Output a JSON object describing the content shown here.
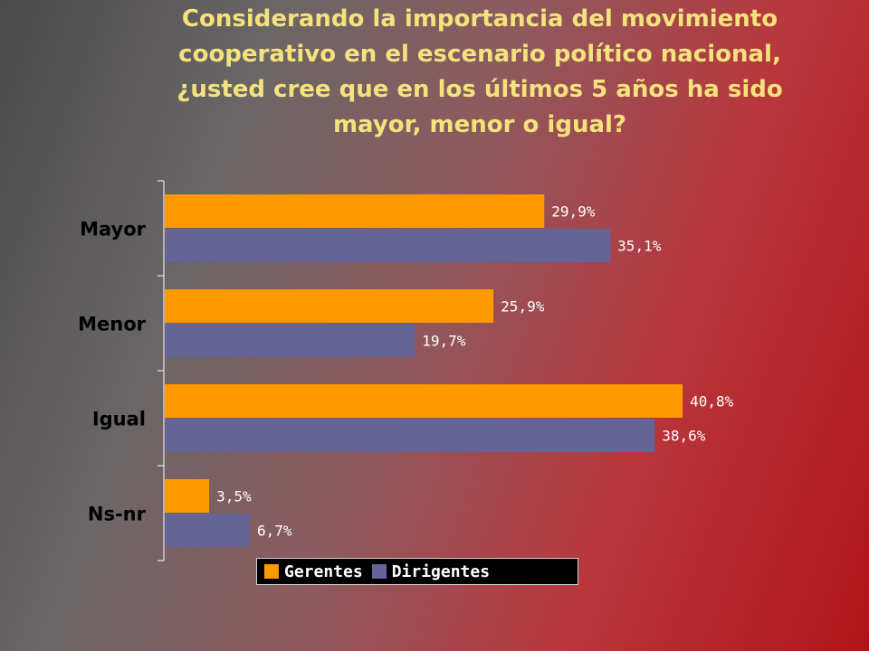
{
  "title": "Considerando la importancia del movimiento cooperativo en el escenario político nacional, ¿usted cree que en los últimos 5 años ha sido mayor, menor o igual?",
  "chart_data": {
    "type": "bar",
    "orientation": "horizontal",
    "title": "Considerando la importancia del movimiento cooperativo en el escenario político nacional, ¿usted cree que en los últimos 5 años ha sido mayor, menor o igual?",
    "categories": [
      "Mayor",
      "Menor",
      "Igual",
      "Ns-nr"
    ],
    "series": [
      {
        "name": "Gerentes",
        "color": "#ff9900",
        "values": [
          29.9,
          25.9,
          40.8,
          3.5
        ],
        "labels": [
          "29,9%",
          "25,9%",
          "40,8%",
          "3,5%"
        ]
      },
      {
        "name": "Dirigentes",
        "color": "#646496",
        "values": [
          35.1,
          19.7,
          38.6,
          6.7
        ],
        "labels": [
          "35,1%",
          "19,7%",
          "38,6%",
          "6,7%"
        ]
      }
    ],
    "xlim": [
      0,
      45
    ],
    "grid": false,
    "legend_position": "bottom"
  },
  "legend": {
    "items": [
      {
        "label": "Gerentes",
        "color": "#ff9900"
      },
      {
        "label": "Dirigentes",
        "color": "#646496"
      }
    ]
  }
}
